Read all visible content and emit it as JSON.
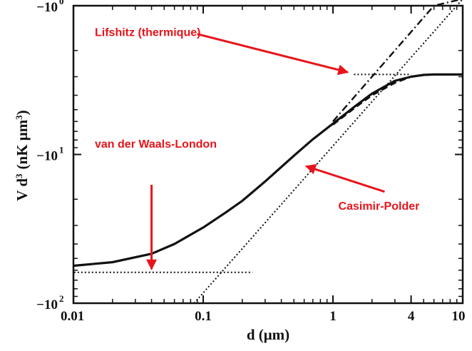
{
  "chart_data": {
    "type": "line",
    "xscale": "log",
    "yscale": "log",
    "xlim": [
      0.01,
      10
    ],
    "ylim_magnitude": [
      1,
      100
    ],
    "xlabel": "d (μm)",
    "ylabel": "V d",
    "ylabel_exp": "3",
    "ylabel_unit": "(nK μm",
    "ylabel_unit_exp": "3",
    "ylabel_close": ")",
    "x_ticks": [
      {
        "value": 0.01,
        "label": "0.01"
      },
      {
        "value": 0.1,
        "label": "0.1"
      },
      {
        "value": 1,
        "label": "1"
      },
      {
        "value": 4,
        "label": "4"
      },
      {
        "value": 10,
        "label": "10"
      }
    ],
    "y_ticks": [
      {
        "magnitude": 1,
        "label": "−10",
        "exp": "0"
      },
      {
        "magnitude": 10,
        "label": "−10",
        "exp": "1"
      },
      {
        "magnitude": 100,
        "label": "−10",
        "exp": "2"
      }
    ],
    "grid": false,
    "series": [
      {
        "style": "solid",
        "x": [
          0.01,
          0.02,
          0.04,
          0.06,
          0.1,
          0.15,
          0.2,
          0.3,
          0.5,
          0.7,
          1.0,
          1.5,
          2.0,
          3.0,
          4.0,
          5.0,
          6.0,
          8.0,
          10.0
        ],
        "y_magnitude": [
          56,
          53,
          46.5,
          40,
          31,
          24.5,
          20.5,
          15.2,
          10.2,
          7.9,
          6.2,
          4.7,
          3.9,
          3.2,
          3.0,
          2.92,
          2.9,
          2.9,
          2.9
        ]
      },
      {
        "style": "dotted",
        "x": [
          0.085,
          10
        ],
        "y_magnitude": [
          100,
          0.9
        ]
      },
      {
        "style": "dashdot",
        "x": [
          1.0,
          1.5,
          2.0,
          3.0,
          4.0,
          6.0,
          10.0
        ],
        "y_magnitude": [
          6.0,
          4.0,
          3.0,
          2.0,
          1.5,
          1.0,
          0.9
        ]
      },
      {
        "style": "dashed",
        "x": [
          1.0,
          1.5,
          2.0,
          3.0,
          4.0,
          5.0
        ],
        "y_magnitude": [
          6.3,
          4.8,
          4.0,
          3.3,
          3.0,
          2.92
        ]
      },
      {
        "style": "dotted",
        "x": [
          0.0101,
          0.24
        ],
        "y_magnitude": [
          62,
          62
        ]
      },
      {
        "style": "dotted",
        "x": [
          1.45,
          4.0
        ],
        "y_magnitude": [
          2.9,
          2.9
        ]
      }
    ],
    "annotations": [
      {
        "text": "Lifshitz (thermique)",
        "color": "#e8141b",
        "anchor_x": 0.008,
        "anchor_y": 1.6,
        "arrow_from": [
          0.09,
          1.55
        ],
        "arrow_to": [
          1.3,
          2.8
        ]
      },
      {
        "text": "van der Waals-London",
        "color": "#e8141b",
        "anchor_x": 0.008,
        "anchor_y": 9.0,
        "arrow_from": [
          0.04,
          16
        ],
        "arrow_to": [
          0.04,
          59
        ]
      },
      {
        "text": "Casimir-Polder",
        "color": "#e8141b",
        "anchor_x": 1.1,
        "anchor_y": 23.5,
        "arrow_from": [
          2.5,
          17.8
        ],
        "arrow_to": [
          0.62,
          12
        ]
      }
    ]
  }
}
